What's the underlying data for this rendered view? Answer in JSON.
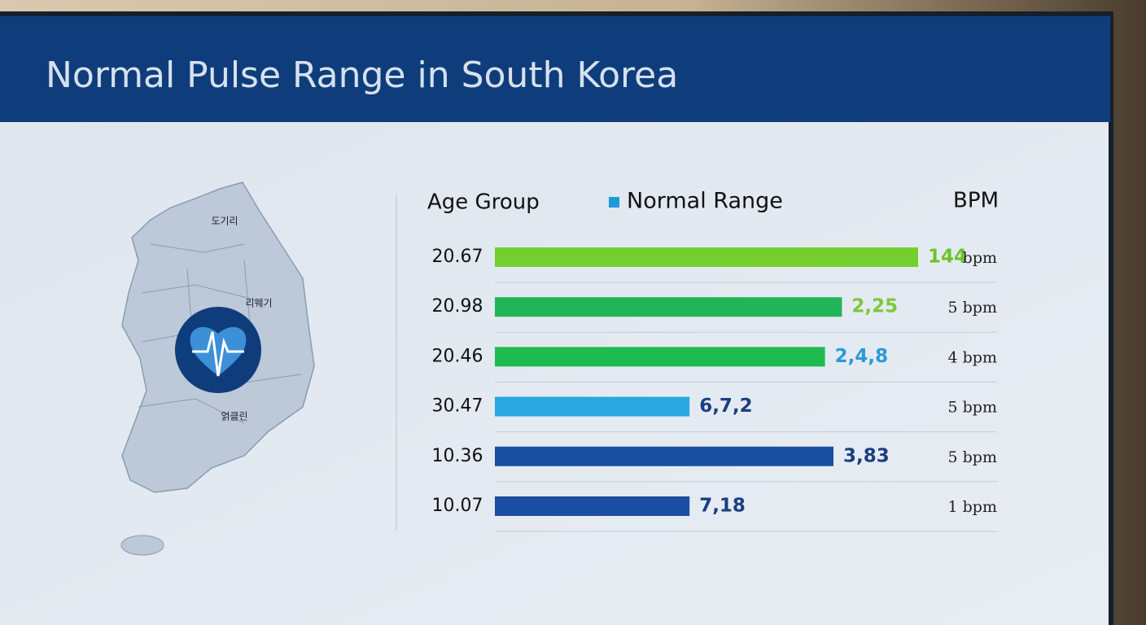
{
  "chart_data": {
    "type": "hbar",
    "title": "Normal Pulse Range in South Korea",
    "category_header": "Age Group",
    "legend": "Normal Range",
    "legend_color": "#1e9ad6",
    "value_header": "BPM",
    "categories": [
      "20.67",
      "20.98",
      "20.46",
      "30.47",
      "10.36",
      "10.07"
    ],
    "values": [
      100,
      82,
      78,
      46,
      80,
      46
    ],
    "xlim": [
      0,
      100
    ],
    "colors": [
      "#74cf2e",
      "#22b557",
      "#1fba50",
      "#2aa8e0",
      "#1a4fa0",
      "#1a4ea0"
    ],
    "bar_labels": [
      "144",
      "2,25",
      "2,4,8",
      "6,7,2",
      "3,83",
      "7,18"
    ],
    "bar_label_colors": [
      "#6dc32a",
      "#7cc83a",
      "#2a9ad8",
      "#1a3f80",
      "#1a3f80",
      "#1a3f80"
    ],
    "bpm_labels": [
      "bpm",
      "5 bpm",
      "4 bpm",
      "5 bpm",
      "5 bpm",
      "1 bpm"
    ],
    "map_labels": [
      "도기리",
      "리웨기",
      "얽클린"
    ]
  }
}
